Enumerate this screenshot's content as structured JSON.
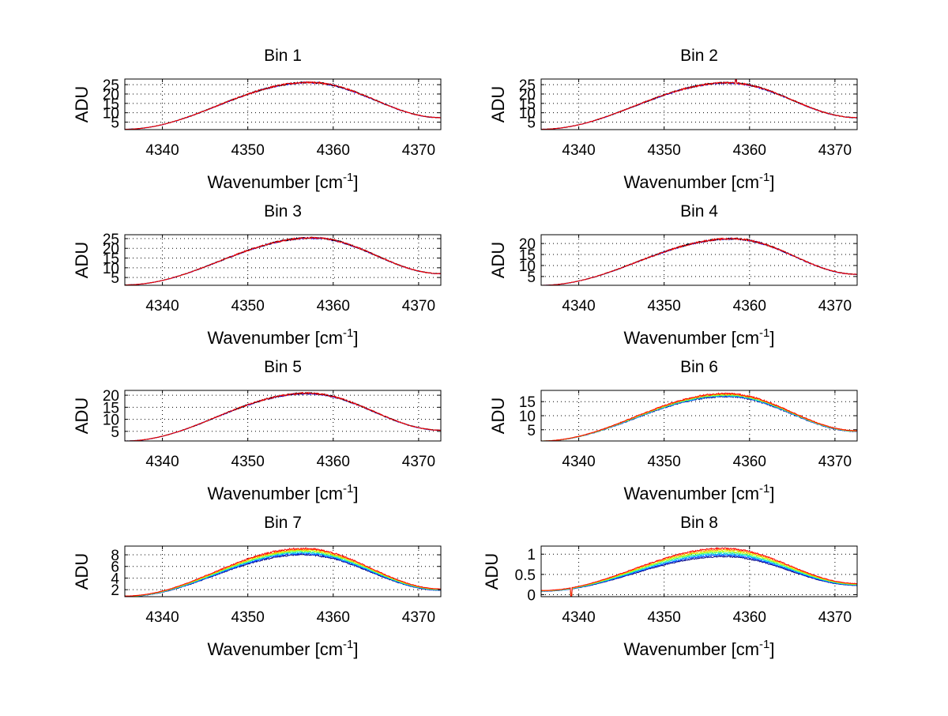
{
  "figure": {
    "background": "#ffffff",
    "noise": 0.015
  },
  "chart_data": [
    {
      "type": "line",
      "title": "Bin 1",
      "xlabel_main": "Wavenumber [cm",
      "xlabel_sup": "-1",
      "xlabel_end": "]",
      "ylabel": "ADU",
      "xlim": [
        4335.6,
        4372.6
      ],
      "ylim": [
        1,
        28
      ],
      "xticks": [
        4340,
        4350,
        4360,
        4370
      ],
      "xtick_labels": [
        "4340",
        "4350",
        "4360",
        "4370"
      ],
      "yticks": [
        5,
        10,
        15,
        20,
        25
      ],
      "ytick_labels": [
        "5",
        "10",
        "15",
        "20",
        "25"
      ],
      "profile": {
        "peak_x": 4357.2,
        "base": 1.2,
        "peak": 26.2,
        "end": 7.4
      },
      "series": [
        {
          "name": "s1",
          "color": "#0000ff",
          "scale": 0.995
        },
        {
          "name": "s2",
          "color": "#000000",
          "scale": 1.0
        },
        {
          "name": "s3",
          "color": "#ff0000",
          "scale": 1.0
        }
      ],
      "annotations": []
    },
    {
      "type": "line",
      "title": "Bin 2",
      "xlabel_main": "Wavenumber [cm",
      "xlabel_sup": "-1",
      "xlabel_end": "]",
      "ylabel": "ADU",
      "xlim": [
        4335.6,
        4372.6
      ],
      "ylim": [
        1,
        28
      ],
      "xticks": [
        4340,
        4350,
        4360,
        4370
      ],
      "xtick_labels": [
        "4340",
        "4350",
        "4360",
        "4370"
      ],
      "yticks": [
        5,
        10,
        15,
        20,
        25
      ],
      "ytick_labels": [
        "5",
        "10",
        "15",
        "20",
        "25"
      ],
      "profile": {
        "peak_x": 4357.5,
        "base": 1.2,
        "peak": 26.0,
        "end": 7.4
      },
      "series": [
        {
          "name": "s1",
          "color": "#0000ff",
          "scale": 0.995
        },
        {
          "name": "s2",
          "color": "#000000",
          "scale": 1.0
        },
        {
          "name": "s3",
          "color": "#ff0000",
          "scale": 1.0
        }
      ],
      "annotations": [
        {
          "x": 4358.4,
          "dy": -6
        }
      ]
    },
    {
      "type": "line",
      "title": "Bin 3",
      "xlabel_main": "Wavenumber [cm",
      "xlabel_sup": "-1",
      "xlabel_end": "]",
      "ylabel": "ADU",
      "xlim": [
        4335.6,
        4372.6
      ],
      "ylim": [
        1,
        27
      ],
      "xticks": [
        4340,
        4350,
        4360,
        4370
      ],
      "xtick_labels": [
        "4340",
        "4350",
        "4360",
        "4370"
      ],
      "yticks": [
        5,
        10,
        15,
        20,
        25
      ],
      "ytick_labels": [
        "5",
        "10",
        "15",
        "20",
        "25"
      ],
      "profile": {
        "peak_x": 4357.6,
        "base": 1.2,
        "peak": 25.4,
        "end": 7.0
      },
      "series": [
        {
          "name": "s1",
          "color": "#0000ff",
          "scale": 0.995
        },
        {
          "name": "s2",
          "color": "#000000",
          "scale": 1.0
        },
        {
          "name": "s3",
          "color": "#ff0000",
          "scale": 1.0
        }
      ],
      "annotations": []
    },
    {
      "type": "line",
      "title": "Bin 4",
      "xlabel_main": "Wavenumber [cm",
      "xlabel_sup": "-1",
      "xlabel_end": "]",
      "ylabel": "ADU",
      "xlim": [
        4335.6,
        4372.6
      ],
      "ylim": [
        1,
        24
      ],
      "xticks": [
        4340,
        4350,
        4360,
        4370
      ],
      "xtick_labels": [
        "4340",
        "4350",
        "4360",
        "4370"
      ],
      "yticks": [
        5,
        10,
        15,
        20
      ],
      "ytick_labels": [
        "5",
        "10",
        "15",
        "20"
      ],
      "profile": {
        "peak_x": 4358.0,
        "base": 1.0,
        "peak": 22.2,
        "end": 6.0
      },
      "series": [
        {
          "name": "s1",
          "color": "#0000ff",
          "scale": 0.995
        },
        {
          "name": "s2",
          "color": "#000000",
          "scale": 1.0
        },
        {
          "name": "s3",
          "color": "#ff0000",
          "scale": 1.0
        }
      ],
      "annotations": []
    },
    {
      "type": "line",
      "title": "Bin 5",
      "xlabel_main": "Wavenumber [cm",
      "xlabel_sup": "-1",
      "xlabel_end": "]",
      "ylabel": "ADU",
      "xlim": [
        4335.6,
        4372.6
      ],
      "ylim": [
        1,
        22
      ],
      "xticks": [
        4340,
        4350,
        4360,
        4370
      ],
      "xtick_labels": [
        "4340",
        "4350",
        "4360",
        "4370"
      ],
      "yticks": [
        5,
        10,
        15,
        20
      ],
      "ytick_labels": [
        "5",
        "10",
        "15",
        "20"
      ],
      "profile": {
        "peak_x": 4357.0,
        "base": 1.0,
        "peak": 20.8,
        "end": 5.5
      },
      "series": [
        {
          "name": "s1",
          "color": "#0000ff",
          "scale": 0.995
        },
        {
          "name": "s2",
          "color": "#000000",
          "scale": 1.0
        },
        {
          "name": "s3",
          "color": "#ff0000",
          "scale": 1.0
        }
      ],
      "annotations": []
    },
    {
      "type": "line",
      "title": "Bin 6",
      "xlabel_main": "Wavenumber [cm",
      "xlabel_sup": "-1",
      "xlabel_end": "]",
      "ylabel": "ADU",
      "xlim": [
        4335.6,
        4372.6
      ],
      "ylim": [
        1,
        19
      ],
      "xticks": [
        4340,
        4350,
        4360,
        4370
      ],
      "xtick_labels": [
        "4340",
        "4350",
        "4360",
        "4370"
      ],
      "yticks": [
        5,
        10,
        15
      ],
      "ytick_labels": [
        "5",
        "10",
        "15"
      ],
      "profile": {
        "peak_x": 4357.3,
        "base": 1.0,
        "peak": 17.6,
        "end": 4.6
      },
      "series": [
        {
          "name": "s1",
          "color": "#000080",
          "scale": 0.955
        },
        {
          "name": "s2",
          "color": "#0040ff",
          "scale": 0.965
        },
        {
          "name": "s3",
          "color": "#00c0ff",
          "scale": 0.975
        },
        {
          "name": "s4",
          "color": "#40ff80",
          "scale": 0.985
        },
        {
          "name": "s5",
          "color": "#c0ff00",
          "scale": 0.995
        },
        {
          "name": "s6",
          "color": "#ffa000",
          "scale": 1.005
        },
        {
          "name": "s7",
          "color": "#ff0000",
          "scale": 1.015
        }
      ],
      "annotations": []
    },
    {
      "type": "line",
      "title": "Bin 7",
      "xlabel_main": "Wavenumber [cm",
      "xlabel_sup": "-1",
      "xlabel_end": "]",
      "ylabel": "ADU",
      "xlim": [
        4335.6,
        4372.6
      ],
      "ylim": [
        0.8,
        9.5
      ],
      "xticks": [
        4340,
        4350,
        4360,
        4370
      ],
      "xtick_labels": [
        "4340",
        "4350",
        "4360",
        "4370"
      ],
      "yticks": [
        2,
        4,
        6,
        8
      ],
      "ytick_labels": [
        "2",
        "4",
        "6",
        "8"
      ],
      "profile": {
        "peak_x": 4356.5,
        "base": 0.9,
        "peak": 8.9,
        "end": 2.1
      },
      "series": [
        {
          "name": "s1",
          "color": "#000080",
          "scale": 0.9
        },
        {
          "name": "s2",
          "color": "#0040ff",
          "scale": 0.92
        },
        {
          "name": "s3",
          "color": "#00c0ff",
          "scale": 0.94
        },
        {
          "name": "s4",
          "color": "#40ff80",
          "scale": 0.96
        },
        {
          "name": "s5",
          "color": "#c0ff00",
          "scale": 0.98
        },
        {
          "name": "s6",
          "color": "#ffa000",
          "scale": 1.0
        },
        {
          "name": "s7",
          "color": "#ff0000",
          "scale": 1.02
        }
      ],
      "annotations": []
    },
    {
      "type": "line",
      "title": "Bin 8",
      "xlabel_main": "Wavenumber [cm",
      "xlabel_sup": "-1",
      "xlabel_end": "]",
      "ylabel": "ADU",
      "xlim": [
        4335.6,
        4372.6
      ],
      "ylim": [
        -0.05,
        1.2
      ],
      "xticks": [
        4340,
        4350,
        4360,
        4370
      ],
      "xtick_labels": [
        "4340",
        "4350",
        "4360",
        "4370"
      ],
      "yticks": [
        0,
        0.5,
        1
      ],
      "ytick_labels": [
        "0",
        "0.5",
        "1"
      ],
      "profile": {
        "peak_x": 4357.0,
        "base": 0.1,
        "peak": 1.12,
        "end": 0.27
      },
      "series": [
        {
          "name": "s1",
          "color": "#000080",
          "scale": 0.84
        },
        {
          "name": "s2",
          "color": "#0040ff",
          "scale": 0.87
        },
        {
          "name": "s3",
          "color": "#00c0ff",
          "scale": 0.9
        },
        {
          "name": "s4",
          "color": "#40ff80",
          "scale": 0.93
        },
        {
          "name": "s5",
          "color": "#c0ff00",
          "scale": 0.96
        },
        {
          "name": "s6",
          "color": "#ffa000",
          "scale": 0.99
        },
        {
          "name": "s7",
          "color": "#ff0000",
          "scale": 1.02
        }
      ],
      "annotations": [
        {
          "x": 4339.1,
          "dy": 14
        }
      ]
    }
  ]
}
